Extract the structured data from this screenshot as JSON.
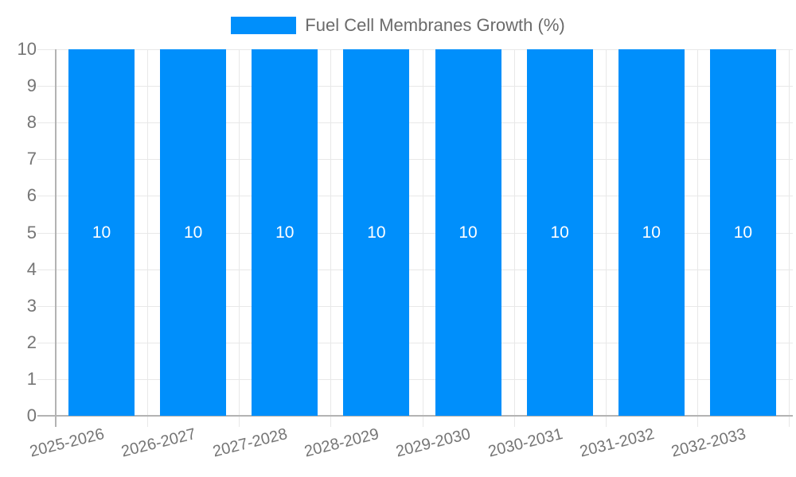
{
  "chart_data": {
    "type": "bar",
    "title": "Fuel Cell Membranes Growth (%)",
    "categories": [
      "2025-2026",
      "2026-2027",
      "2027-2028",
      "2028-2029",
      "2029-2030",
      "2030-2031",
      "2031-2032",
      "2032-2033"
    ],
    "values": [
      10,
      10,
      10,
      10,
      10,
      10,
      10,
      10
    ],
    "bar_value_labels": [
      "10",
      "10",
      "10",
      "10",
      "10",
      "10",
      "10",
      "10"
    ],
    "xlabel": "",
    "ylabel": "",
    "ylim": [
      0,
      10
    ],
    "yticks": [
      0,
      1,
      2,
      3,
      4,
      5,
      6,
      7,
      8,
      9,
      10
    ],
    "grid": true,
    "legend_position": "top",
    "colors": {
      "bar": "#008FFB",
      "bar_label": "#FFFFFF",
      "gridline": "#E8E8E8",
      "axis_line": "#B3B3B3",
      "tick_label": "#757575",
      "legend_text": "#6B6B6B",
      "background": "#FFFFFF"
    }
  }
}
